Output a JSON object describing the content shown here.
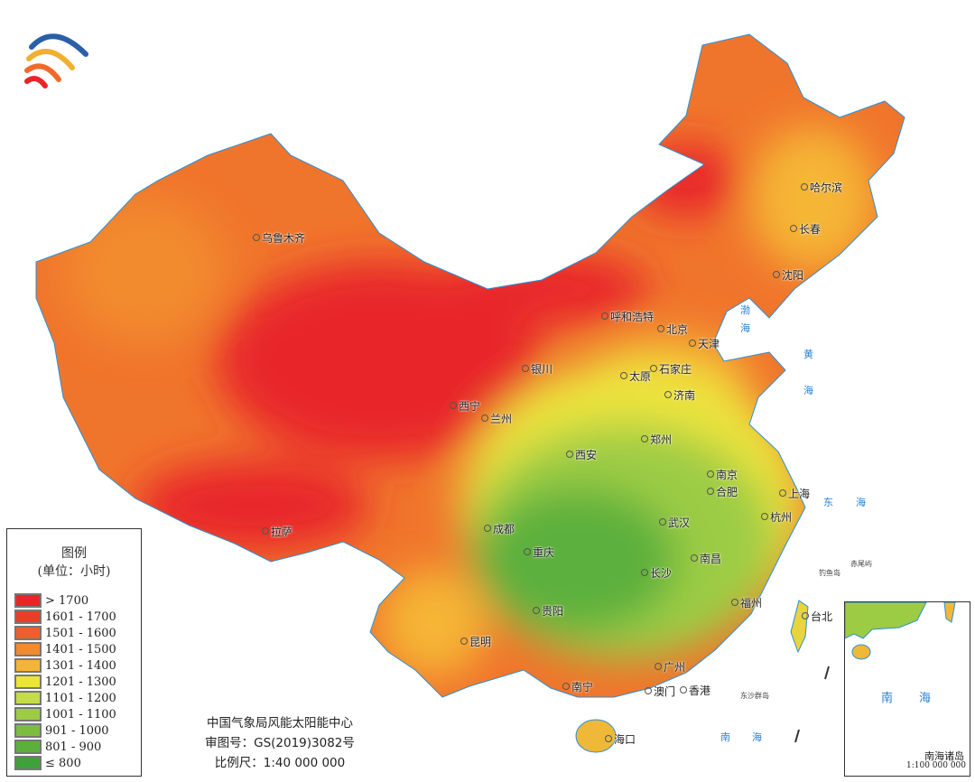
{
  "legend": {
    "title": "图例",
    "unit": "(单位：小时)",
    "items": [
      {
        "label": "> 1700",
        "color": "#e8262a"
      },
      {
        "label": "1601 - 1700",
        "color": "#ec3c2a"
      },
      {
        "label": "1501 - 1600",
        "color": "#ef5f2b"
      },
      {
        "label": "1401 - 1500",
        "color": "#f28a2e"
      },
      {
        "label": "1301 - 1400",
        "color": "#f5b534"
      },
      {
        "label": "1201 - 1300",
        "color": "#ece43c"
      },
      {
        "label": "1101 - 1200",
        "color": "#c4dc46"
      },
      {
        "label": "1001 - 1100",
        "color": "#9ccc44"
      },
      {
        "label": "901 - 1000",
        "color": "#7cbd3e"
      },
      {
        "label": "801 - 900",
        "color": "#5bb03c"
      },
      {
        "label": "≤ 800",
        "color": "#40a03a"
      }
    ]
  },
  "credits": {
    "org": "中国气象局风能太阳能中心",
    "approval": "审图号：GS(2019)3082号",
    "scale": "比例尺：1:40 000 000"
  },
  "cities": [
    "乌鲁木齐",
    "哈尔滨",
    "长春",
    "沈阳",
    "呼和浩特",
    "北京",
    "天津",
    "银川",
    "太原",
    "石家庄",
    "济南",
    "西宁",
    "兰州",
    "郑州",
    "西安",
    "南京",
    "合肥",
    "上海",
    "杭州",
    "拉萨",
    "成都",
    "重庆",
    "武汉",
    "南昌",
    "长沙",
    "福州",
    "台北",
    "贵阳",
    "昆明",
    "广州",
    "澳门",
    "香港",
    "南宁",
    "海口"
  ],
  "seas": {
    "bohai_1": "渤",
    "bohai_2": "海",
    "huang": "黄",
    "huang_2": "海",
    "dong": "东",
    "dong_2": "海",
    "nan": "南",
    "nan_2": "海"
  },
  "islands": {
    "diaoyu": "钓鱼岛",
    "chiwei": "赤尾屿",
    "dongsha": "东沙群岛"
  },
  "inset": {
    "sea_1": "南",
    "sea_2": "海",
    "title": "南海诸岛",
    "scale": "1:100 000 000"
  }
}
